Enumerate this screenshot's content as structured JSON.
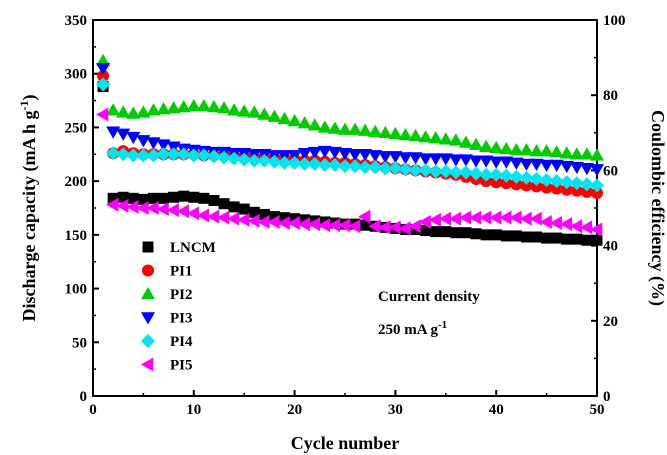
{
  "chart_data": {
    "type": "scatter",
    "xlabel": "Cycle number",
    "ylabel": "Discharge capacity (mA h g-1)",
    "ylabel_main": "Discharge capacity (mA h g",
    "ylabel_sup": "-1",
    "ylabel_close": ")",
    "y2label": "Coulombic efficiency (%)",
    "xlim": [
      0,
      50
    ],
    "ylim": [
      0,
      350
    ],
    "y2lim": [
      0,
      100
    ],
    "x_ticks": [
      0,
      10,
      20,
      30,
      40,
      50
    ],
    "y_ticks": [
      0,
      50,
      100,
      150,
      200,
      250,
      300,
      350
    ],
    "y2_ticks": [
      0,
      20,
      40,
      60,
      80,
      100
    ],
    "grid": false,
    "legend_position": "left",
    "annotations": {
      "line1": "Current density",
      "line2_main": "250 mA g",
      "line2_sup": "-1"
    },
    "series": [
      {
        "name": "LNCM",
        "marker": "square",
        "color": "#000000",
        "x": [
          1,
          2,
          3,
          4,
          5,
          6,
          7,
          8,
          9,
          10,
          11,
          12,
          13,
          14,
          15,
          16,
          17,
          18,
          19,
          20,
          21,
          22,
          23,
          24,
          25,
          26,
          27,
          28,
          29,
          30,
          31,
          32,
          33,
          34,
          35,
          36,
          37,
          38,
          39,
          40,
          41,
          42,
          43,
          44,
          45,
          46,
          47,
          48,
          49,
          50
        ],
        "y": [
          288,
          184,
          185,
          184,
          183,
          184,
          184,
          185,
          186,
          185,
          184,
          182,
          179,
          176,
          174,
          171,
          169,
          167,
          166,
          165,
          164,
          163,
          162,
          161,
          160,
          160,
          159,
          158,
          157,
          156,
          155,
          155,
          154,
          153,
          153,
          152,
          152,
          151,
          150,
          150,
          149,
          149,
          148,
          148,
          147,
          147,
          146,
          146,
          145,
          145
        ]
      },
      {
        "name": "PI1",
        "marker": "circle",
        "color": "#ff0000",
        "x": [
          1,
          2,
          3,
          4,
          5,
          6,
          7,
          8,
          9,
          10,
          11,
          12,
          13,
          14,
          15,
          16,
          17,
          18,
          19,
          20,
          21,
          22,
          23,
          24,
          25,
          26,
          27,
          28,
          29,
          30,
          31,
          32,
          33,
          34,
          35,
          36,
          37,
          38,
          39,
          40,
          41,
          42,
          43,
          44,
          45,
          46,
          47,
          48,
          49,
          50
        ],
        "y": [
          298,
          226,
          228,
          226,
          225,
          225,
          225,
          225,
          225,
          225,
          224,
          224,
          224,
          223,
          223,
          222,
          222,
          221,
          221,
          220,
          219,
          219,
          218,
          217,
          217,
          216,
          215,
          214,
          213,
          212,
          211,
          210,
          209,
          208,
          207,
          206,
          204,
          202,
          200,
          199,
          198,
          197,
          196,
          195,
          194,
          193,
          192,
          191,
          190,
          189
        ]
      },
      {
        "name": "PI2",
        "marker": "triangle-up",
        "color": "#00cc00",
        "x": [
          1,
          2,
          3,
          4,
          5,
          6,
          7,
          8,
          9,
          10,
          11,
          12,
          13,
          14,
          15,
          16,
          17,
          18,
          19,
          20,
          21,
          22,
          23,
          24,
          25,
          26,
          27,
          28,
          29,
          30,
          31,
          32,
          33,
          34,
          35,
          36,
          37,
          38,
          39,
          40,
          41,
          42,
          43,
          44,
          45,
          46,
          47,
          48,
          49,
          50
        ],
        "y": [
          312,
          266,
          264,
          263,
          264,
          266,
          267,
          268,
          269,
          270,
          270,
          269,
          268,
          266,
          265,
          264,
          262,
          260,
          258,
          256,
          254,
          252,
          250,
          249,
          248,
          248,
          247,
          246,
          245,
          244,
          243,
          242,
          241,
          240,
          239,
          238,
          236,
          234,
          232,
          231,
          230,
          229,
          229,
          228,
          228,
          227,
          226,
          225,
          225,
          224
        ]
      },
      {
        "name": "PI3",
        "marker": "triangle-down",
        "color": "#0000ff",
        "x": [
          1,
          2,
          3,
          4,
          5,
          6,
          7,
          8,
          9,
          10,
          11,
          12,
          13,
          14,
          15,
          16,
          17,
          18,
          19,
          20,
          21,
          22,
          23,
          24,
          25,
          26,
          27,
          28,
          29,
          30,
          31,
          32,
          33,
          34,
          35,
          36,
          37,
          38,
          39,
          40,
          41,
          42,
          43,
          44,
          45,
          46,
          47,
          48,
          49,
          50
        ],
        "y": [
          305,
          246,
          244,
          241,
          238,
          236,
          234,
          232,
          230,
          229,
          228,
          227,
          227,
          226,
          226,
          225,
          225,
          224,
          224,
          224,
          226,
          227,
          228,
          227,
          226,
          225,
          225,
          224,
          223,
          223,
          222,
          222,
          221,
          221,
          221,
          220,
          220,
          219,
          219,
          218,
          218,
          217,
          216,
          216,
          215,
          215,
          214,
          213,
          212,
          211
        ]
      },
      {
        "name": "PI4",
        "marker": "diamond",
        "color": "#00e5ee",
        "x": [
          1,
          2,
          3,
          4,
          5,
          6,
          7,
          8,
          9,
          10,
          11,
          12,
          13,
          14,
          15,
          16,
          17,
          18,
          19,
          20,
          21,
          22,
          23,
          24,
          25,
          26,
          27,
          28,
          29,
          30,
          31,
          32,
          33,
          34,
          35,
          36,
          37,
          38,
          39,
          40,
          41,
          42,
          43,
          44,
          45,
          46,
          47,
          48,
          49,
          50
        ],
        "y": [
          290,
          226,
          225,
          224,
          224,
          224,
          225,
          225,
          225,
          224,
          224,
          223,
          222,
          221,
          220,
          219,
          219,
          218,
          217,
          217,
          216,
          216,
          215,
          215,
          214,
          214,
          213,
          213,
          212,
          212,
          211,
          210,
          210,
          209,
          209,
          208,
          208,
          207,
          206,
          206,
          205,
          204,
          203,
          202,
          201,
          200,
          199,
          198,
          197,
          196
        ]
      },
      {
        "name": "PI5",
        "marker": "triangle-left",
        "color": "#ff00ff",
        "x": [
          1,
          2,
          3,
          4,
          5,
          6,
          7,
          8,
          9,
          10,
          11,
          12,
          13,
          14,
          15,
          16,
          17,
          18,
          19,
          20,
          21,
          22,
          23,
          24,
          25,
          26,
          27,
          28,
          29,
          30,
          31,
          32,
          33,
          34,
          35,
          36,
          37,
          38,
          39,
          40,
          41,
          42,
          43,
          44,
          45,
          46,
          47,
          48,
          49,
          50
        ],
        "y": [
          262,
          178,
          177,
          176,
          175,
          175,
          174,
          173,
          172,
          170,
          168,
          167,
          166,
          165,
          164,
          163,
          162,
          162,
          161,
          161,
          160,
          160,
          159,
          159,
          159,
          158,
          167,
          158,
          157,
          157,
          156,
          158,
          162,
          164,
          165,
          165,
          166,
          166,
          166,
          166,
          166,
          166,
          165,
          165,
          162,
          161,
          160,
          158,
          157,
          155
        ]
      }
    ]
  }
}
